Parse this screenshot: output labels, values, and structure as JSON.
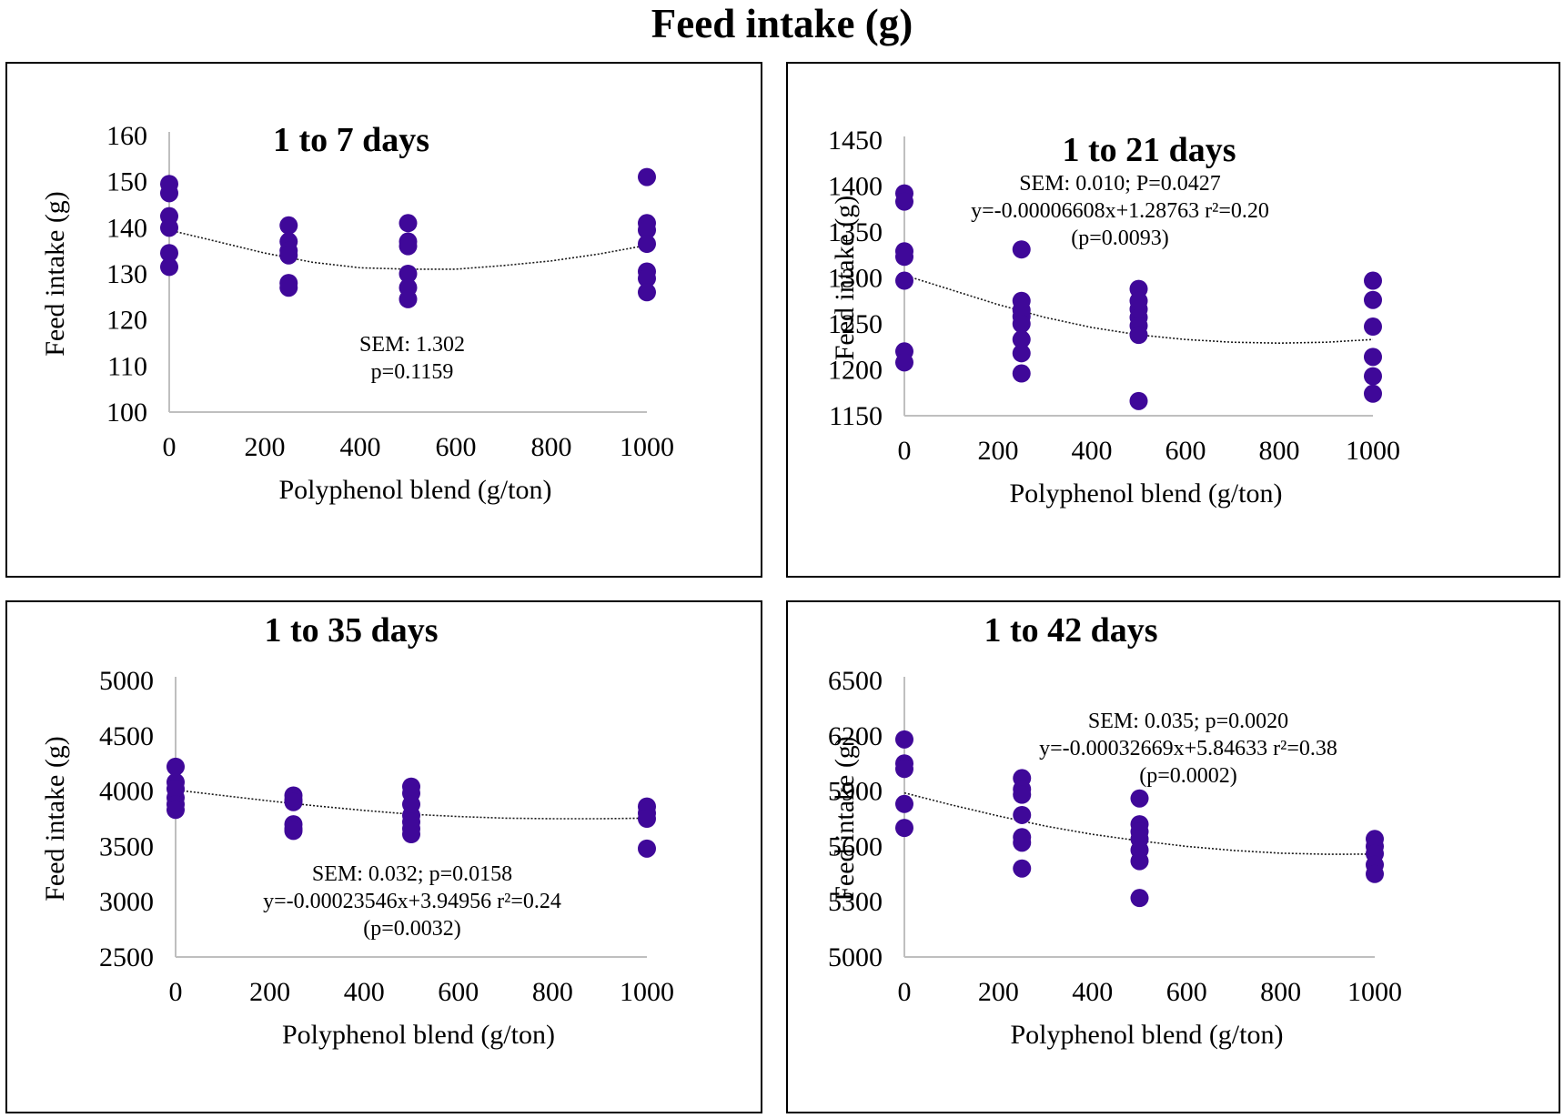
{
  "title": "Feed intake (g)",
  "colors": {
    "marker": "#3f0899",
    "axis": "#bfbfbf",
    "trend": "#1a1a1a"
  },
  "chart_data": [
    {
      "type": "scatter",
      "title": "1 to 7 days",
      "xlabel": "Polyphenol blend (g/ton)",
      "ylabel": "Feed intake (g)",
      "xlim": [
        0,
        1000
      ],
      "ylim": [
        100,
        160
      ],
      "xticks": [
        0,
        200,
        400,
        600,
        800,
        1000
      ],
      "yticks": [
        100,
        110,
        120,
        130,
        140,
        150,
        160
      ],
      "annotation": [
        "SEM: 1.302",
        "p=0.1159"
      ],
      "points": [
        [
          0,
          149.5
        ],
        [
          0,
          147.5
        ],
        [
          0,
          142.5
        ],
        [
          0,
          140
        ],
        [
          0,
          134.5
        ],
        [
          0,
          131.5
        ],
        [
          250,
          140.5
        ],
        [
          250,
          137
        ],
        [
          250,
          135
        ],
        [
          250,
          134
        ],
        [
          250,
          128
        ],
        [
          250,
          127
        ],
        [
          500,
          141
        ],
        [
          500,
          137
        ],
        [
          500,
          136
        ],
        [
          500,
          130
        ],
        [
          500,
          127
        ],
        [
          500,
          124.5
        ],
        [
          1000,
          151
        ],
        [
          1000,
          141
        ],
        [
          1000,
          139.5
        ],
        [
          1000,
          136.5
        ],
        [
          1000,
          130.5
        ],
        [
          1000,
          129
        ],
        [
          1000,
          126
        ]
      ],
      "trend": [
        [
          0,
          139.5
        ],
        [
          100,
          137
        ],
        [
          200,
          134.5
        ],
        [
          300,
          132.5
        ],
        [
          400,
          131.3
        ],
        [
          500,
          131
        ],
        [
          600,
          131
        ],
        [
          700,
          131.8
        ],
        [
          800,
          132.8
        ],
        [
          900,
          134.3
        ],
        [
          1000,
          136.2
        ]
      ]
    },
    {
      "type": "scatter",
      "title": "1 to 21 days",
      "xlabel": "Polyphenol blend (g/ton)",
      "ylabel": "Feed intake (g)",
      "xlim": [
        0,
        1000
      ],
      "ylim": [
        1150,
        1450
      ],
      "xticks": [
        0,
        200,
        400,
        600,
        800,
        1000
      ],
      "yticks": [
        1150,
        1200,
        1250,
        1300,
        1350,
        1400,
        1450
      ],
      "annotation": [
        "SEM: 0.010; P=0.0427",
        "y=-0.00006608x+1.28763 r²=0.20",
        "(p=0.0093)"
      ],
      "points": [
        [
          0,
          1392
        ],
        [
          0,
          1383
        ],
        [
          0,
          1329
        ],
        [
          0,
          1323
        ],
        [
          0,
          1297
        ],
        [
          0,
          1220
        ],
        [
          0,
          1208
        ],
        [
          250,
          1331
        ],
        [
          250,
          1275
        ],
        [
          250,
          1265
        ],
        [
          250,
          1258
        ],
        [
          250,
          1250
        ],
        [
          250,
          1233
        ],
        [
          250,
          1218
        ],
        [
          250,
          1196
        ],
        [
          500,
          1288
        ],
        [
          500,
          1275
        ],
        [
          500,
          1266
        ],
        [
          500,
          1257
        ],
        [
          500,
          1248
        ],
        [
          500,
          1238
        ],
        [
          500,
          1166
        ],
        [
          1000,
          1297
        ],
        [
          1000,
          1276
        ],
        [
          1000,
          1247
        ],
        [
          1000,
          1214
        ],
        [
          1000,
          1193
        ],
        [
          1000,
          1174
        ]
      ],
      "trend": [
        [
          0,
          1303
        ],
        [
          100,
          1287
        ],
        [
          200,
          1271
        ],
        [
          300,
          1257
        ],
        [
          400,
          1246
        ],
        [
          500,
          1238
        ],
        [
          600,
          1233
        ],
        [
          700,
          1230
        ],
        [
          800,
          1229
        ],
        [
          900,
          1230
        ],
        [
          1000,
          1233
        ]
      ]
    },
    {
      "type": "scatter",
      "title": "1 to 35 days",
      "xlabel": "Polyphenol blend (g/ton)",
      "ylabel": "Feed intake (g)",
      "xlim": [
        0,
        1000
      ],
      "ylim": [
        2500,
        5000
      ],
      "xticks": [
        0,
        200,
        400,
        600,
        800,
        1000
      ],
      "yticks": [
        2500,
        3000,
        3500,
        4000,
        4500,
        5000
      ],
      "annotation": [
        "SEM: 0.032; p=0.0158",
        "y=-0.00023546x+3.94956 r²=0.24",
        "(p=0.0032)"
      ],
      "points": [
        [
          0,
          4220
        ],
        [
          0,
          4080
        ],
        [
          0,
          4020
        ],
        [
          0,
          3940
        ],
        [
          0,
          3880
        ],
        [
          0,
          3830
        ],
        [
          250,
          3960
        ],
        [
          250,
          3920
        ],
        [
          250,
          3900
        ],
        [
          250,
          3700
        ],
        [
          250,
          3660
        ],
        [
          250,
          3640
        ],
        [
          500,
          4040
        ],
        [
          500,
          3980
        ],
        [
          500,
          3880
        ],
        [
          500,
          3780
        ],
        [
          500,
          3720
        ],
        [
          500,
          3660
        ],
        [
          500,
          3610
        ],
        [
          1000,
          3860
        ],
        [
          1000,
          3800
        ],
        [
          1000,
          3750
        ],
        [
          1000,
          3480
        ]
      ],
      "trend": [
        [
          0,
          4010
        ],
        [
          100,
          3960
        ],
        [
          200,
          3910
        ],
        [
          300,
          3865
        ],
        [
          400,
          3825
        ],
        [
          500,
          3790
        ],
        [
          600,
          3770
        ],
        [
          700,
          3755
        ],
        [
          800,
          3750
        ],
        [
          900,
          3750
        ],
        [
          1000,
          3755
        ]
      ]
    },
    {
      "type": "scatter",
      "title": "1 to 42 days",
      "xlabel": "Polyphenol blend (g/ton)",
      "ylabel": "Feed intake (g)",
      "xlim": [
        0,
        1000
      ],
      "ylim": [
        5000,
        6500
      ],
      "xticks": [
        0,
        200,
        400,
        600,
        800,
        1000
      ],
      "yticks": [
        5000,
        5300,
        5600,
        5900,
        6200,
        6500
      ],
      "annotation": [
        "SEM: 0.035; p=0.0020",
        "y=-0.00032669x+5.84633 r²=0.38",
        "(p=0.0002)"
      ],
      "points": [
        [
          0,
          6180
        ],
        [
          0,
          6050
        ],
        [
          0,
          6020
        ],
        [
          0,
          5830
        ],
        [
          0,
          5700
        ],
        [
          250,
          5970
        ],
        [
          250,
          5910
        ],
        [
          250,
          5880
        ],
        [
          250,
          5770
        ],
        [
          250,
          5650
        ],
        [
          250,
          5620
        ],
        [
          250,
          5480
        ],
        [
          500,
          5860
        ],
        [
          500,
          5720
        ],
        [
          500,
          5680
        ],
        [
          500,
          5640
        ],
        [
          500,
          5580
        ],
        [
          500,
          5520
        ],
        [
          500,
          5320
        ],
        [
          1000,
          5640
        ],
        [
          1000,
          5600
        ],
        [
          1000,
          5560
        ],
        [
          1000,
          5500
        ],
        [
          1000,
          5450
        ]
      ],
      "trend": [
        [
          0,
          5890
        ],
        [
          100,
          5825
        ],
        [
          200,
          5765
        ],
        [
          300,
          5710
        ],
        [
          400,
          5665
        ],
        [
          500,
          5630
        ],
        [
          600,
          5600
        ],
        [
          700,
          5578
        ],
        [
          800,
          5563
        ],
        [
          900,
          5557
        ],
        [
          1000,
          5558
        ]
      ]
    }
  ]
}
